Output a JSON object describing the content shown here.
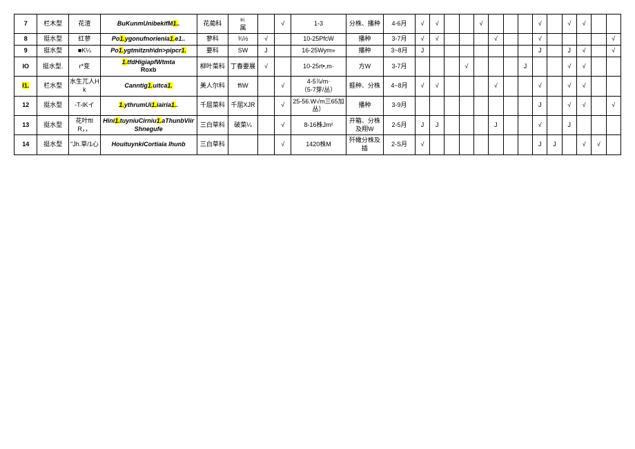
{
  "colors": {
    "highlight": "#ffff00",
    "border": "#000000",
    "background": "#ffffff"
  },
  "rows": [
    {
      "idx": "7",
      "type": "栏木型",
      "name": "花渣",
      "latin_pre": "BuKunmUnibekifM",
      "latin_hl": "1.",
      "latin_post": ".",
      "family": "花蔺科",
      "genus": "属",
      "genus_sup": "Iri.",
      "chk1": "",
      "chk2": "√",
      "density": "1-3",
      "method": "分株、播种",
      "time": "4-6月",
      "m": [
        "√",
        "√",
        "",
        "",
        "√",
        "",
        "",
        "",
        "√",
        "",
        "√",
        "√",
        "",
        ""
      ]
    },
    {
      "idx": "8",
      "type": "挺水型",
      "name": "红蓼",
      "latin_pre": "Po",
      "latin_hl": "1.",
      "latin_mid": "ygonufnorienia",
      "latin_hl2": "1.",
      "latin_post": "e1..",
      "family": "蓼科",
      "genus": "¾½",
      "chk1": "√",
      "chk2": "",
      "density": "10-25PfcW",
      "method": "播种",
      "time": "3-7月",
      "m": [
        "√",
        "√",
        "",
        "",
        "",
        "√",
        "",
        "",
        "√",
        "",
        "",
        "",
        "",
        "√"
      ]
    },
    {
      "idx": "9",
      "type": "挺水型",
      "name": "■K¼",
      "latin_pre": "Po",
      "latin_hl": "1.",
      "latin_mid": "ygtmitznh\\dn>pipcr",
      "latin_hl2": "1.",
      "latin_post": "",
      "family": "要科",
      "genus": "SW",
      "chk1": "J",
      "chk2": "",
      "density": "16-25Wym»",
      "method": "播种",
      "time": "3~8月",
      "m": [
        "J",
        "",
        "",
        "",
        "",
        "",
        "",
        "",
        "J",
        "",
        "J",
        "√",
        "",
        "√"
      ]
    },
    {
      "idx": "IO",
      "type": "挺水型.",
      "name": "r*变",
      "latin_pre": "",
      "latin_hl": "1.",
      "latin_mid": "tfdHigiapfWtmta",
      "latin_post2": " Roxb",
      "family": "柳叶菜科",
      "genus": "丁春要展",
      "chk1": "√",
      "chk2": "",
      "density": "10-25rt•,m·",
      "method": "方W",
      "time": "3-7月",
      "m": [
        "",
        "",
        "",
        "√",
        "",
        "",
        "",
        "J",
        "",
        "",
        "√",
        "√",
        "",
        ""
      ]
    },
    {
      "idx": "I1.",
      "idx_hl": true,
      "type": "栏水型",
      "name": "水生兀人Hk",
      "latin_pre": "Canntig",
      "latin_hl": "1.",
      "latin_mid": "uitca",
      "latin_hl2": "1.",
      "latin_post": "",
      "family": "美人尔科",
      "genus": "ffiW",
      "chk1": "",
      "chk2": "√",
      "density": "4-5⅞/m·\n（5-7芽/丛）",
      "method": "捱种、分株",
      "time": "4~8月",
      "m": [
        "√",
        "√",
        "",
        "",
        "",
        "√",
        "",
        "",
        "√",
        "",
        "√",
        "√",
        "",
        ""
      ]
    },
    {
      "idx": "12",
      "type": "挺水型",
      "name": "-T-IKイ",
      "latin_pre": "",
      "latin_hl": "1.",
      "latin_mid": "ythrumUi",
      "latin_hl2": "1.",
      "latin_mid2": "iairia",
      "latin_hl3": "1.",
      "latin_post": ".",
      "family": "千屈菜科",
      "genus": "千屈XJR",
      "chk1": "",
      "chk2": "√",
      "density": "25-56.W√m三65加丛）",
      "method": "播种",
      "time": "3-9月",
      "m": [
        "",
        "",
        "",
        "",
        "",
        "",
        "",
        "",
        "J",
        "",
        "√",
        "√",
        "",
        "√"
      ]
    },
    {
      "idx": "13",
      "type": "挺水型",
      "name": "花叶ftIR，，",
      "latin_pre": "Hini",
      "latin_hl": "1.",
      "latin_mid": "tuyniuCirniu",
      "latin_hl2": "1.",
      "latin_post": "aThunbViirShnegufe",
      "family": "三白草科",
      "genus": "破菜¼",
      "chk1": "",
      "chk2": "√",
      "density": "8-16株Jm²",
      "method": "开箱、分株及翔W",
      "time": "2-5月",
      "m": [
        "J",
        "J",
        "",
        "",
        "",
        "J",
        "",
        "",
        "√",
        "",
        "J",
        "",
        "",
        ""
      ]
    },
    {
      "idx": "14",
      "type": "挺水型",
      "name": "\"Jh.草/1心",
      "latin_pre": "HouituynkiCortiaia Ihunb",
      "latin_post": "",
      "family": "三白草科",
      "genus": "",
      "chk1": "",
      "chk2": "√",
      "density": "1420株M",
      "method": "歼橄分株及插",
      "time": "2-S月",
      "m": [
        "√",
        "",
        "",
        "",
        "",
        "",
        "",
        "",
        "J",
        "J",
        "",
        "√",
        "√",
        ""
      ]
    }
  ]
}
